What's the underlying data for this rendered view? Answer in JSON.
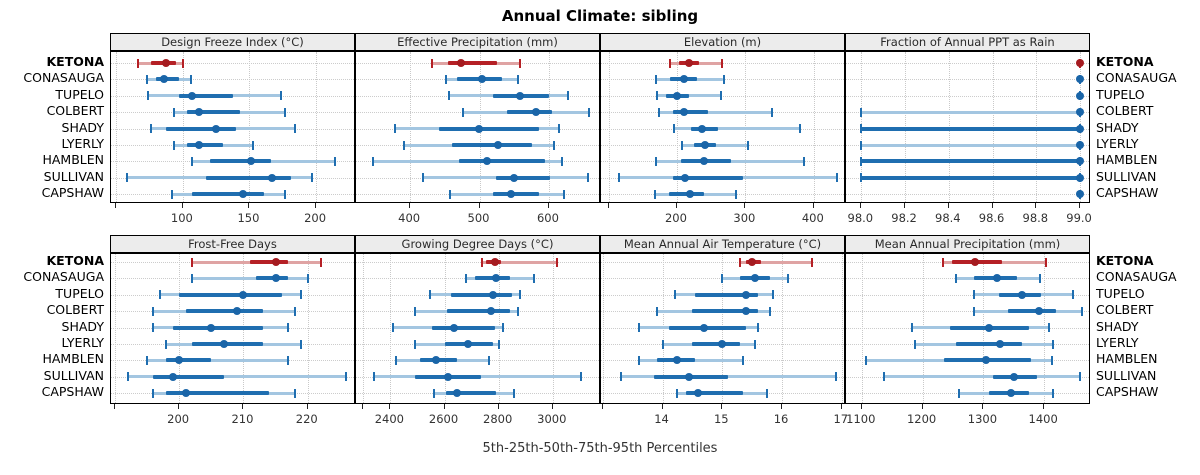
{
  "title": "Annual Climate: sibling",
  "caption": "5th-25th-50th-75th-95th Percentiles",
  "sites": [
    "KETONA",
    "CONASAUGA",
    "TUPELO",
    "COLBERT",
    "SHADY",
    "LYERLY",
    "HAMBLEN",
    "SULLIVAN",
    "CAPSHAW"
  ],
  "highlight_site": "KETONA",
  "percentiles": [
    5,
    25,
    50,
    75,
    95
  ],
  "colors": {
    "highlight_line": "#b52025",
    "highlight_band": "#dfa3a3",
    "highlight_dot": "#a51b20",
    "normal_line": "#1f6eb0",
    "normal_band": "#a3c6e1",
    "normal_dot": "#1a65a8",
    "strip_bg": "#ececec",
    "panel_border": "#000000",
    "grid": "#c9c9c9",
    "axis_text": "#333333"
  },
  "chart_data": [
    {
      "type": "scatter",
      "variant": "percentile-range-dotplot",
      "key": "design-freeze-index",
      "title": "Design Freeze Index (°C)",
      "row": 0,
      "col": 0,
      "xlim": [
        46,
        230
      ],
      "ticks": [
        {
          "v": 50,
          "label": ""
        },
        {
          "v": 100,
          "label": "100"
        },
        {
          "v": 150,
          "label": "150"
        },
        {
          "v": 200,
          "label": "200"
        }
      ],
      "values": [
        [
          66,
          76,
          87,
          95,
          100
        ],
        [
          73,
          80,
          86,
          97,
          106
        ],
        [
          74,
          97,
          107,
          138,
          174
        ],
        [
          93,
          103,
          112,
          143,
          177
        ],
        [
          76,
          87,
          125,
          140,
          184
        ],
        [
          93,
          103,
          112,
          130,
          153
        ],
        [
          107,
          120,
          151,
          166,
          214
        ],
        [
          58,
          117,
          167,
          181,
          197
        ],
        [
          92,
          107,
          145,
          161,
          177
        ]
      ]
    },
    {
      "type": "scatter",
      "variant": "percentile-range-dotplot",
      "key": "effective-precipitation",
      "title": "Effective Precipitation (mm)",
      "row": 0,
      "col": 1,
      "xlim": [
        322,
        675
      ],
      "ticks": [
        {
          "v": 400,
          "label": "400"
        },
        {
          "v": 500,
          "label": "500"
        },
        {
          "v": 600,
          "label": "600"
        }
      ],
      "values": [
        [
          432,
          455,
          474,
          525,
          558
        ],
        [
          451,
          468,
          504,
          533,
          556
        ],
        [
          456,
          520,
          559,
          600,
          627
        ],
        [
          476,
          540,
          581,
          605,
          658
        ],
        [
          378,
          441,
          499,
          586,
          614
        ],
        [
          391,
          460,
          527,
          576,
          608
        ],
        [
          347,
          470,
          511,
          595,
          619
        ],
        [
          419,
          523,
          549,
          602,
          656
        ],
        [
          458,
          520,
          545,
          586,
          622
        ]
      ]
    },
    {
      "type": "scatter",
      "variant": "percentile-range-dotplot",
      "key": "elevation",
      "title": "Elevation (m)",
      "row": 0,
      "col": 2,
      "xlim": [
        89,
        447
      ],
      "ticks": [
        {
          "v": 100,
          "label": ""
        },
        {
          "v": 200,
          "label": "200"
        },
        {
          "v": 300,
          "label": "300"
        },
        {
          "v": 400,
          "label": "400"
        }
      ],
      "values": [
        [
          190,
          203,
          218,
          232,
          266
        ],
        [
          169,
          190,
          210,
          229,
          268
        ],
        [
          171,
          184,
          200,
          218,
          264
        ],
        [
          174,
          194,
          210,
          245,
          339
        ],
        [
          195,
          221,
          237,
          260,
          380
        ],
        [
          207,
          225,
          241,
          257,
          304
        ],
        [
          169,
          206,
          240,
          279,
          386
        ],
        [
          115,
          194,
          212,
          297,
          434
        ],
        [
          168,
          189,
          219,
          240,
          286
        ]
      ]
    },
    {
      "type": "scatter",
      "variant": "percentile-range-dotplot",
      "key": "fraction-ppt-as-rain",
      "title": "Fraction of Annual PPT as Rain",
      "row": 0,
      "col": 3,
      "xlim": [
        97.93,
        99.05
      ],
      "ticks": [
        {
          "v": 98.0,
          "label": "98.0"
        },
        {
          "v": 98.2,
          "label": "98.2"
        },
        {
          "v": 98.4,
          "label": "98.4"
        },
        {
          "v": 98.6,
          "label": "98.6"
        },
        {
          "v": 98.8,
          "label": "98.8"
        },
        {
          "v": 99.0,
          "label": "99.0"
        }
      ],
      "values": [
        [
          99,
          99,
          99,
          99,
          99
        ],
        [
          99,
          99,
          99,
          99,
          99
        ],
        [
          99,
          99,
          99,
          99,
          99
        ],
        [
          98,
          99,
          99,
          99,
          99
        ],
        [
          98,
          98,
          99,
          99,
          99
        ],
        [
          98,
          99,
          99,
          99,
          99
        ],
        [
          98,
          98,
          99,
          99,
          99
        ],
        [
          98,
          98,
          99,
          99,
          99
        ],
        [
          99,
          99,
          99,
          99,
          99
        ]
      ]
    },
    {
      "type": "scatter",
      "variant": "percentile-range-dotplot",
      "key": "frost-free-days",
      "title": "Frost-Free Days",
      "row": 1,
      "col": 0,
      "xlim": [
        189.4,
        227.5
      ],
      "ticks": [
        {
          "v": 190,
          "label": ""
        },
        {
          "v": 200,
          "label": "200"
        },
        {
          "v": 210,
          "label": "210"
        },
        {
          "v": 220,
          "label": "220"
        }
      ],
      "values": [
        [
          202,
          211,
          215,
          217,
          222
        ],
        [
          202,
          212,
          215,
          217,
          220
        ],
        [
          197,
          200,
          210,
          216,
          219
        ],
        [
          196,
          201,
          209,
          213,
          218
        ],
        [
          196,
          199,
          205,
          213,
          217
        ],
        [
          198,
          202,
          207,
          213,
          219
        ],
        [
          195,
          198,
          200,
          205,
          217
        ],
        [
          192,
          196,
          199,
          207,
          226
        ],
        [
          196,
          198,
          201,
          214,
          218
        ]
      ]
    },
    {
      "type": "scatter",
      "variant": "percentile-range-dotplot",
      "key": "growing-degree-days",
      "title": "Growing Degree Days (°C)",
      "row": 1,
      "col": 1,
      "xlim": [
        2273,
        3178
      ],
      "ticks": [
        {
          "v": 2300,
          "label": ""
        },
        {
          "v": 2400,
          "label": "2400"
        },
        {
          "v": 2600,
          "label": "2600"
        },
        {
          "v": 2800,
          "label": "2800"
        },
        {
          "v": 3000,
          "label": "3000"
        }
      ],
      "values": [
        [
          2740,
          2755,
          2785,
          2810,
          3015
        ],
        [
          2680,
          2712,
          2790,
          2843,
          2930
        ],
        [
          2548,
          2625,
          2778,
          2848,
          2880
        ],
        [
          2490,
          2608,
          2772,
          2843,
          2872
        ],
        [
          2410,
          2555,
          2635,
          2788,
          2815
        ],
        [
          2490,
          2600,
          2685,
          2778,
          2802
        ],
        [
          2420,
          2510,
          2570,
          2645,
          2765
        ],
        [
          2340,
          2490,
          2612,
          2735,
          3105
        ],
        [
          2560,
          2605,
          2645,
          2790,
          2855
        ]
      ]
    },
    {
      "type": "scatter",
      "variant": "percentile-range-dotplot",
      "key": "mean-annual-air-temperature",
      "title": "Mean Annual Air Temperature (°C)",
      "row": 1,
      "col": 2,
      "xlim": [
        12.97,
        17.07
      ],
      "ticks": [
        {
          "v": 13,
          "label": ""
        },
        {
          "v": 14,
          "label": "14"
        },
        {
          "v": 15,
          "label": "15"
        },
        {
          "v": 16,
          "label": "16"
        },
        {
          "v": 17,
          "label": "17"
        }
      ],
      "values": [
        [
          15.3,
          15.4,
          15.5,
          15.65,
          16.5
        ],
        [
          15.0,
          15.3,
          15.55,
          15.8,
          16.1
        ],
        [
          14.2,
          14.55,
          15.4,
          15.6,
          15.85
        ],
        [
          13.9,
          14.5,
          15.4,
          15.6,
          15.8
        ],
        [
          13.6,
          14.1,
          14.7,
          15.4,
          15.6
        ],
        [
          14.0,
          14.5,
          15.0,
          15.3,
          15.55
        ],
        [
          13.6,
          13.9,
          14.25,
          14.55,
          15.35
        ],
        [
          13.3,
          13.85,
          14.45,
          15.1,
          16.9
        ],
        [
          14.25,
          14.4,
          14.6,
          15.35,
          15.75
        ]
      ]
    },
    {
      "type": "scatter",
      "variant": "percentile-range-dotplot",
      "key": "mean-annual-precipitation",
      "title": "Mean Annual Precipitation (mm)",
      "row": 1,
      "col": 3,
      "xlim": [
        1074,
        1477
      ],
      "ticks": [
        {
          "v": 1100,
          "label": "1100"
        },
        {
          "v": 1200,
          "label": "1200"
        },
        {
          "v": 1300,
          "label": "1300"
        },
        {
          "v": 1400,
          "label": "1400"
        }
      ],
      "values": [
        [
          1233,
          1248,
          1287,
          1330,
          1403
        ],
        [
          1255,
          1285,
          1322,
          1355,
          1393
        ],
        [
          1285,
          1325,
          1363,
          1395,
          1447
        ],
        [
          1285,
          1340,
          1392,
          1420,
          1462
        ],
        [
          1183,
          1245,
          1310,
          1375,
          1408
        ],
        [
          1187,
          1255,
          1328,
          1363,
          1414
        ],
        [
          1107,
          1235,
          1305,
          1378,
          1413
        ],
        [
          1137,
          1315,
          1350,
          1388,
          1459
        ],
        [
          1260,
          1310,
          1345,
          1375,
          1415
        ]
      ]
    }
  ]
}
